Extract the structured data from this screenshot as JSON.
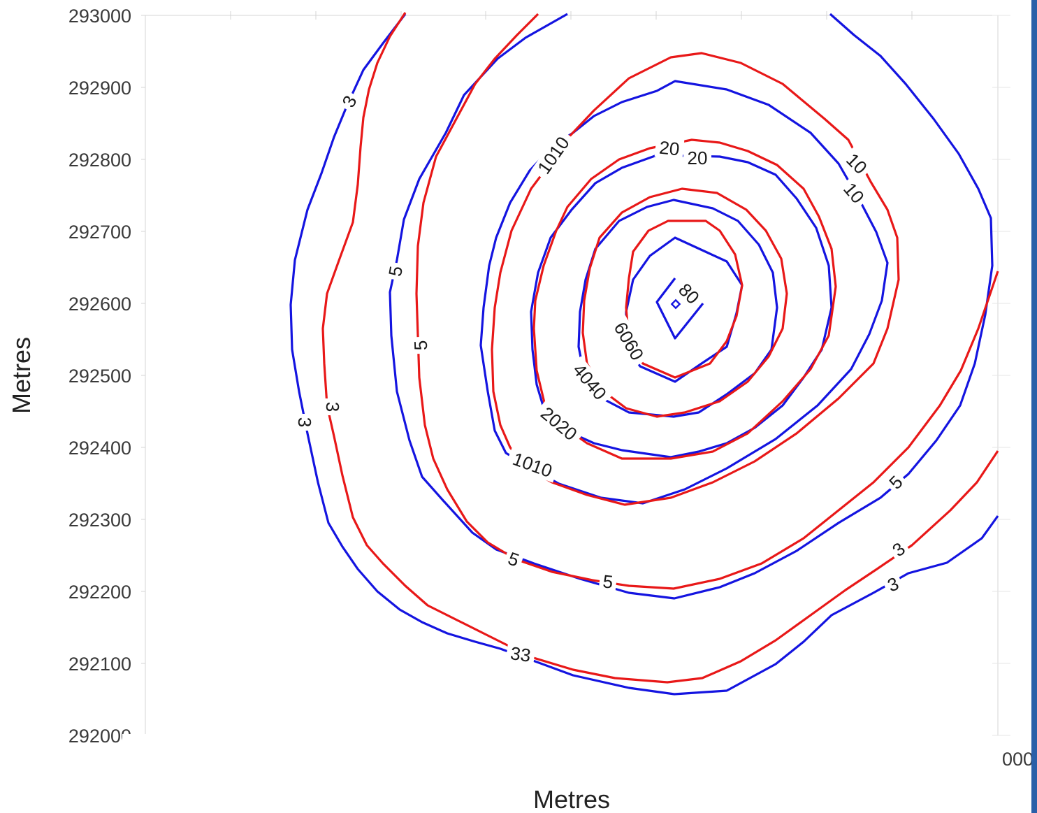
{
  "chart_data": {
    "type": "contour",
    "xlabel": "Metres",
    "ylabel": "Metres",
    "ylim": [
      292000,
      293000
    ],
    "y_ticks": [
      293000,
      292900,
      292800,
      292700,
      292600,
      292500,
      292400,
      292300,
      292200,
      292100,
      292000
    ],
    "y_tick_labels": [
      "293000",
      "292900",
      "292800",
      "292700",
      "292600",
      "292500",
      "292400",
      "292300",
      "292200",
      "292100",
      "292000"
    ],
    "x_tick_labels": [
      "000"
    ],
    "series": [
      {
        "color": "#1414e0",
        "levels": [
          3,
          5,
          10,
          20,
          40,
          60,
          80
        ]
      },
      {
        "color": "#e81818",
        "levels": [
          3,
          5,
          10,
          20,
          40,
          60
        ]
      }
    ],
    "contour_labels": [
      "3",
      "5",
      "10",
      "20",
      "40",
      "60",
      "80"
    ]
  }
}
